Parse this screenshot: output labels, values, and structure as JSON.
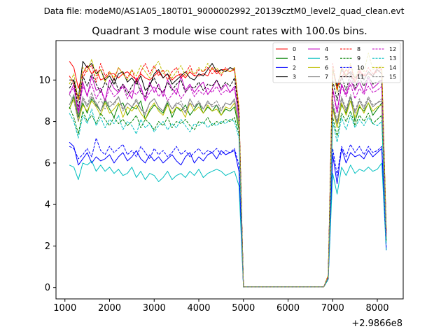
{
  "figure": {
    "suptitle": "Data file: modeM0/AS1A05_180T01_9000002992_20139cztM0_level2_quad_clean.evt"
  },
  "chart_data": {
    "type": "line",
    "title": "Quadrant 3 module wise count rates with 100.0s bins.",
    "xlabel": "",
    "ylabel": "",
    "x_offset_label": "+2.9866e8",
    "xlim": [
      800,
      8580
    ],
    "ylim": [
      -0.55,
      11.9
    ],
    "xticks": [
      1000,
      2000,
      3000,
      4000,
      5000,
      6000,
      7000,
      8000
    ],
    "yticks": [
      0,
      2,
      4,
      6,
      8,
      10
    ],
    "grid": false,
    "legend": {
      "placement": "top-right",
      "columns": 4
    },
    "x": [
      1100,
      1200,
      1300,
      1400,
      1500,
      1600,
      1700,
      1800,
      1900,
      2000,
      2100,
      2200,
      2300,
      2400,
      2500,
      2600,
      2700,
      2800,
      2900,
      3000,
      3100,
      3200,
      3300,
      3400,
      3500,
      3600,
      3700,
      3800,
      3900,
      4000,
      4100,
      4200,
      4300,
      4400,
      4500,
      4600,
      4700,
      4800,
      4900,
      5000,
      6800,
      6900,
      7000,
      7100,
      7200,
      7300,
      7400,
      7500,
      7600,
      7700,
      7800,
      7900,
      8000,
      8100,
      8200
    ],
    "series": [
      {
        "name": "0",
        "color": "#ff0000",
        "dash": false,
        "values": [
          10.9,
          10.6,
          9.6,
          10.3,
          10.7,
          10.3,
          10.5,
          10.0,
          10.1,
          10.3,
          10.3,
          10.1,
          10.3,
          10.4,
          10.2,
          10.0,
          10.3,
          10.1,
          10.0,
          10.2,
          10.4,
          10.1,
          10.3,
          10.0,
          10.2,
          10.3,
          10.1,
          10.4,
          10.2,
          10.2,
          10.3,
          10.2,
          10.6,
          10.3,
          10.5,
          10.5,
          10.4,
          10.6,
          8.4,
          0.03,
          0.03,
          0.5,
          10.5,
          9.6,
          10.1,
          10.5,
          10.3,
          9.9,
          10.4,
          10.2,
          10.3,
          10.2,
          10.6,
          10.5,
          2.7
        ]
      },
      {
        "name": "1",
        "color": "#008000",
        "dash": false,
        "values": [
          8.6,
          9.2,
          8.2,
          8.9,
          8.4,
          9.1,
          8.8,
          8.5,
          9.0,
          8.6,
          8.2,
          8.8,
          8.9,
          8.3,
          8.7,
          8.6,
          9.0,
          8.1,
          8.5,
          8.8,
          8.6,
          8.4,
          8.9,
          8.2,
          8.7,
          8.5,
          8.8,
          8.3,
          8.6,
          8.9,
          8.4,
          8.7,
          8.5,
          8.8,
          8.3,
          8.6,
          8.5,
          8.7,
          7.6,
          0.03,
          0.03,
          0.5,
          8.7,
          7.9,
          8.8,
          8.4,
          9.2,
          8.0,
          8.7,
          8.5,
          8.9,
          8.3,
          8.6,
          8.9,
          2.3
        ]
      },
      {
        "name": "2",
        "color": "#0000ff",
        "dash": false,
        "values": [
          7.0,
          6.8,
          5.9,
          6.2,
          6.5,
          6.0,
          6.3,
          6.1,
          6.2,
          6.4,
          6.0,
          6.3,
          6.5,
          6.1,
          6.3,
          6.6,
          6.2,
          6.0,
          6.4,
          6.1,
          6.3,
          6.0,
          6.2,
          6.4,
          6.1,
          5.9,
          6.3,
          6.5,
          6.0,
          6.3,
          6.1,
          6.4,
          6.5,
          6.2,
          6.6,
          6.4,
          6.5,
          6.6,
          5.6,
          0.03,
          0.03,
          0.4,
          6.4,
          5.0,
          6.7,
          6.0,
          6.5,
          6.3,
          6.4,
          6.2,
          6.6,
          6.3,
          6.5,
          6.7,
          1.8
        ]
      },
      {
        "name": "3",
        "color": "#000000",
        "dash": false,
        "values": [
          10.0,
          10.0,
          9.1,
          10.9,
          10.6,
          10.8,
          10.3,
          10.5,
          10.0,
          10.2,
          9.8,
          10.3,
          10.4,
          9.9,
          10.1,
          9.8,
          10.2,
          9.5,
          9.7,
          10.3,
          10.5,
          10.1,
          10.3,
          9.8,
          10.0,
          10.2,
          10.4,
          10.1,
          10.0,
          10.3,
          10.2,
          10.5,
          10.8,
          10.4,
          10.5,
          10.4,
          10.6,
          10.5,
          8.6,
          0.03,
          0.03,
          0.5,
          10.5,
          9.7,
          10.5,
          10.2,
          10.4,
          10.1,
          10.3,
          10.0,
          10.4,
          10.2,
          10.5,
          10.3,
          2.7
        ]
      },
      {
        "name": "4",
        "color": "#c000c0",
        "dash": false,
        "values": [
          9.3,
          9.8,
          8.3,
          9.9,
          9.2,
          10.2,
          9.5,
          9.6,
          9.0,
          10.0,
          9.6,
          9.4,
          9.8,
          9.5,
          9.1,
          10.1,
          9.7,
          9.0,
          9.9,
          9.4,
          9.8,
          9.2,
          10.0,
          9.6,
          9.3,
          10.2,
          9.5,
          9.8,
          9.4,
          9.7,
          9.9,
          9.3,
          9.6,
          10.0,
          9.5,
          9.8,
          9.4,
          9.7,
          8.1,
          0.03,
          0.03,
          0.5,
          9.6,
          8.5,
          9.8,
          9.3,
          10.0,
          9.5,
          9.9,
          9.4,
          10.1,
          9.6,
          9.8,
          10.0,
          2.5
        ]
      },
      {
        "name": "5",
        "color": "#00bfbf",
        "dash": false,
        "values": [
          5.9,
          5.8,
          5.2,
          6.0,
          5.9,
          6.1,
          5.6,
          5.9,
          5.6,
          5.8,
          5.5,
          5.7,
          5.4,
          5.5,
          5.8,
          5.3,
          5.6,
          5.2,
          5.5,
          5.4,
          5.1,
          5.3,
          5.6,
          5.2,
          5.4,
          5.5,
          5.3,
          5.6,
          5.4,
          5.7,
          5.3,
          5.5,
          5.6,
          5.7,
          5.6,
          5.4,
          5.5,
          5.6,
          4.9,
          0.03,
          0.03,
          0.4,
          5.5,
          4.5,
          5.8,
          5.4,
          5.9,
          5.5,
          5.7,
          5.6,
          5.8,
          5.6,
          5.7,
          6.0,
          1.8
        ]
      },
      {
        "name": "6",
        "color": "#bfbf00",
        "dash": false,
        "values": [
          8.6,
          9.1,
          8.0,
          8.8,
          8.5,
          9.0,
          8.7,
          8.3,
          8.9,
          8.4,
          8.6,
          8.9,
          8.2,
          8.7,
          8.5,
          8.8,
          8.4,
          8.1,
          8.6,
          8.9,
          8.5,
          8.3,
          8.8,
          8.4,
          8.7,
          8.6,
          8.2,
          8.9,
          8.5,
          8.7,
          8.4,
          8.8,
          8.5,
          8.6,
          8.3,
          8.7,
          8.6,
          8.9,
          7.8,
          0.03,
          0.03,
          0.5,
          8.6,
          7.7,
          8.9,
          8.3,
          9.0,
          8.2,
          8.8,
          8.4,
          8.9,
          8.5,
          8.7,
          8.8,
          2.3
        ]
      },
      {
        "name": "7",
        "color": "#808080",
        "dash": false,
        "values": [
          8.8,
          9.3,
          8.3,
          9.1,
          8.7,
          9.2,
          8.9,
          8.5,
          9.1,
          8.7,
          8.9,
          9.2,
          8.6,
          8.9,
          8.7,
          9.0,
          8.6,
          8.4,
          8.9,
          9.1,
          8.7,
          8.5,
          9.0,
          8.6,
          8.9,
          8.8,
          8.4,
          9.1,
          8.7,
          8.9,
          8.6,
          9.0,
          8.7,
          8.8,
          8.5,
          8.9,
          8.8,
          9.1,
          7.9,
          0.03,
          0.03,
          0.5,
          8.8,
          7.9,
          9.1,
          8.5,
          9.2,
          8.4,
          9.0,
          8.6,
          9.1,
          8.7,
          8.9,
          9.0,
          2.4
        ]
      },
      {
        "name": "8",
        "color": "#ff0000",
        "dash": true,
        "values": [
          10.2,
          9.8,
          9.0,
          10.1,
          10.5,
          10.7,
          9.9,
          10.8,
          10.2,
          10.4,
          10.0,
          10.6,
          10.3,
          10.1,
          10.5,
          9.9,
          10.4,
          10.8,
          10.3,
          10.7,
          10.2,
          10.5,
          10.0,
          10.4,
          10.6,
          10.1,
          10.3,
          10.7,
          10.2,
          10.5,
          10.4,
          10.6,
          10.3,
          10.5,
          10.2,
          10.6,
          10.4,
          10.5,
          8.7,
          0.03,
          0.03,
          0.6,
          10.8,
          9.5,
          10.6,
          10.1,
          10.7,
          9.9,
          10.5,
          10.2,
          10.6,
          10.3,
          10.4,
          10.5,
          2.7
        ]
      },
      {
        "name": "9",
        "color": "#008000",
        "dash": true,
        "values": [
          8.7,
          8.2,
          7.4,
          8.5,
          8.0,
          8.3,
          7.9,
          8.4,
          8.1,
          7.8,
          8.2,
          7.9,
          8.1,
          7.8,
          8.0,
          8.3,
          7.7,
          8.1,
          7.9,
          7.6,
          8.0,
          7.8,
          8.2,
          7.7,
          8.0,
          7.9,
          8.1,
          7.8,
          7.6,
          8.0,
          7.9,
          8.2,
          7.8,
          8.0,
          7.9,
          8.1,
          8.0,
          8.2,
          7.4,
          0.03,
          0.03,
          0.4,
          8.2,
          7.3,
          8.4,
          8.0,
          8.5,
          7.8,
          8.3,
          8.0,
          8.4,
          7.9,
          8.1,
          8.3,
          2.2
        ]
      },
      {
        "name": "10",
        "color": "#0000ff",
        "dash": true,
        "values": [
          6.8,
          6.7,
          6.2,
          6.4,
          6.7,
          6.3,
          7.2,
          6.6,
          6.4,
          6.8,
          6.5,
          6.7,
          6.9,
          6.4,
          6.6,
          6.3,
          6.8,
          6.5,
          6.2,
          6.7,
          6.4,
          6.6,
          6.3,
          6.5,
          6.8,
          6.4,
          6.6,
          6.3,
          6.5,
          6.7,
          6.4,
          6.6,
          6.5,
          6.7,
          6.4,
          6.6,
          6.5,
          6.7,
          5.9,
          0.03,
          0.03,
          0.4,
          6.7,
          5.4,
          6.8,
          6.3,
          6.9,
          6.5,
          6.8,
          6.4,
          6.8,
          6.5,
          6.6,
          6.8,
          1.9
        ]
      },
      {
        "name": "11",
        "color": "#000000",
        "dash": true,
        "values": [
          9.6,
          10.0,
          8.6,
          10.2,
          9.7,
          10.3,
          9.8,
          9.4,
          9.9,
          9.6,
          10.1,
          9.5,
          9.8,
          9.3,
          9.7,
          10.0,
          9.4,
          9.2,
          9.8,
          10.1,
          9.6,
          9.4,
          9.9,
          9.5,
          9.8,
          10.0,
          9.4,
          9.7,
          9.6,
          9.9,
          9.5,
          9.8,
          9.7,
          10.0,
          9.6,
          9.9,
          9.7,
          10.1,
          8.4,
          0.03,
          0.03,
          0.5,
          10.0,
          9.0,
          10.2,
          9.5,
          10.3,
          9.6,
          10.1,
          9.7,
          10.2,
          9.8,
          9.9,
          10.0,
          2.6
        ]
      },
      {
        "name": "12",
        "color": "#c000c0",
        "dash": true,
        "values": [
          9.4,
          9.6,
          8.5,
          9.7,
          9.3,
          9.8,
          9.1,
          9.5,
          9.0,
          9.6,
          9.2,
          9.4,
          9.7,
          9.1,
          9.5,
          9.3,
          9.6,
          9.0,
          9.4,
          9.7,
          9.2,
          9.5,
          9.0,
          9.3,
          9.6,
          9.1,
          9.4,
          9.7,
          9.2,
          9.5,
          9.3,
          9.6,
          9.4,
          9.7,
          9.3,
          9.5,
          9.4,
          9.6,
          8.2,
          0.03,
          0.03,
          0.5,
          9.5,
          8.4,
          9.7,
          9.2,
          9.8,
          9.1,
          9.6,
          9.3,
          9.7,
          9.4,
          9.5,
          9.7,
          2.5
        ]
      },
      {
        "name": "13",
        "color": "#00bfbf",
        "dash": true,
        "values": [
          8.4,
          8.0,
          7.2,
          8.3,
          7.9,
          8.6,
          7.8,
          8.2,
          7.7,
          8.1,
          7.9,
          8.3,
          7.6,
          8.0,
          7.8,
          7.4,
          8.1,
          7.7,
          7.9,
          7.5,
          7.8,
          8.0,
          7.6,
          7.9,
          7.7,
          8.1,
          7.8,
          7.5,
          7.9,
          7.8,
          8.0,
          7.7,
          7.9,
          7.8,
          8.0,
          7.9,
          8.1,
          8.0,
          7.2,
          0.03,
          0.03,
          0.4,
          8.0,
          7.0,
          8.2,
          7.6,
          8.3,
          7.7,
          8.1,
          7.8,
          8.2,
          7.9,
          7.8,
          8.0,
          2.1
        ]
      },
      {
        "name": "14",
        "color": "#bfbf00",
        "dash": true,
        "values": [
          9.8,
          10.3,
          9.0,
          10.6,
          10.4,
          11.0,
          10.2,
          10.5,
          9.9,
          10.4,
          10.1,
          10.6,
          10.3,
          10.0,
          10.5,
          10.2,
          10.7,
          10.4,
          10.1,
          10.6,
          10.9,
          10.3,
          10.5,
          10.1,
          10.4,
          10.7,
          10.2,
          10.5,
          10.3,
          10.6,
          10.4,
          10.8,
          10.5,
          10.6,
          10.3,
          10.5,
          10.4,
          10.6,
          8.6,
          0.03,
          0.03,
          0.6,
          10.6,
          9.4,
          10.7,
          10.2,
          10.8,
          10.1,
          10.6,
          10.4,
          11.3,
          10.5,
          10.6,
          10.7,
          2.8
        ]
      },
      {
        "name": "15",
        "color": "#808080",
        "dash": true,
        "values": [
          9.3,
          9.0,
          8.0,
          9.2,
          8.8,
          9.4,
          8.7,
          9.1,
          8.6,
          9.0,
          8.8,
          9.2,
          8.5,
          8.9,
          8.7,
          9.1,
          8.6,
          8.3,
          8.9,
          9.1,
          8.7,
          8.5,
          9.0,
          8.6,
          8.8,
          9.0,
          8.5,
          8.9,
          8.7,
          9.0,
          8.6,
          8.9,
          8.8,
          9.0,
          8.6,
          8.9,
          8.8,
          9.0,
          7.9,
          0.03,
          0.03,
          0.5,
          9.0,
          8.0,
          9.2,
          8.6,
          9.3,
          8.5,
          9.1,
          8.7,
          9.2,
          8.8,
          8.9,
          9.1,
          2.4
        ]
      }
    ]
  }
}
